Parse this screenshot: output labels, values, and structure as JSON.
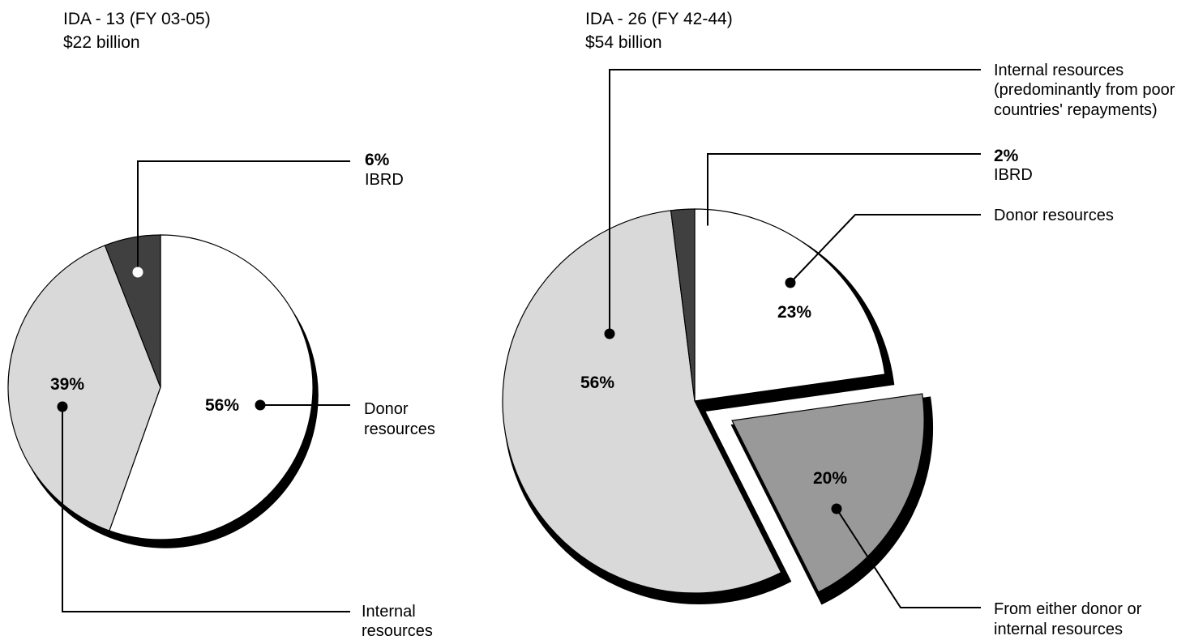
{
  "chart_data": [
    {
      "type": "pie",
      "title": "IDA - 13 (FY 03-05)",
      "subtitle": "$22 billion",
      "slices": [
        {
          "pct_label": "56%",
          "value": 56,
          "label_lines": [
            "Donor",
            "resources"
          ],
          "color": "#ffffff"
        },
        {
          "pct_label": "39%",
          "value": 39,
          "label_lines": [
            "Internal",
            "resources"
          ],
          "color": "#d9d9d9"
        },
        {
          "pct_label": "6%",
          "value": 6,
          "label_lines": [
            "IBRD"
          ],
          "color": "#404040"
        }
      ]
    },
    {
      "type": "pie",
      "title": "IDA - 26 (FY 42-44)",
      "subtitle": "$54 billion",
      "slices": [
        {
          "pct_label": "23%",
          "value": 23,
          "label_lines": [
            "Donor resources"
          ],
          "color": "#ffffff"
        },
        {
          "pct_label": "20%",
          "value": 20,
          "label_lines": [
            "From either donor or",
            "internal resources"
          ],
          "color": "#999999",
          "exploded": true
        },
        {
          "pct_label": "56%",
          "value": 56,
          "label_lines": [
            "Internal resources",
            "(predominantly from poor",
            "countries' repayments)"
          ],
          "color": "#d9d9d9"
        },
        {
          "pct_label": "2%",
          "value": 2,
          "label_lines": [
            "IBRD"
          ],
          "color": "#404040"
        }
      ]
    }
  ]
}
